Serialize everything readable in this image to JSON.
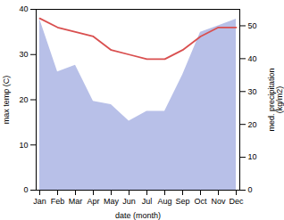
{
  "chart_data": {
    "type": "line",
    "xlabel": "date (month)",
    "ylabel": "max temp (C)",
    "y2label": "med. precipitation\n(kg/m2)",
    "categories": [
      "Jan",
      "Feb",
      "Mar",
      "Apr",
      "May",
      "Jun",
      "Jul",
      "Aug",
      "Sep",
      "Oct",
      "Nov",
      "Dec"
    ],
    "series": [
      {
        "type": "area",
        "axis": "y2",
        "color": "#b8c0e8",
        "values": [
          52,
          36,
          38,
          27,
          26,
          21,
          24,
          24,
          35,
          48,
          50,
          52
        ]
      },
      {
        "type": "line",
        "axis": "y",
        "color": "#d94f4f",
        "values": [
          38,
          36,
          35,
          34,
          31,
          30,
          29,
          29,
          31,
          34,
          36,
          36
        ]
      }
    ],
    "ylim": [
      0,
      40
    ],
    "yticks": [
      0,
      10,
      20,
      30,
      40
    ],
    "y2lim": [
      0,
      55
    ],
    "y2ticks": [
      0,
      10,
      20,
      30,
      40,
      50
    ],
    "grid": false
  }
}
